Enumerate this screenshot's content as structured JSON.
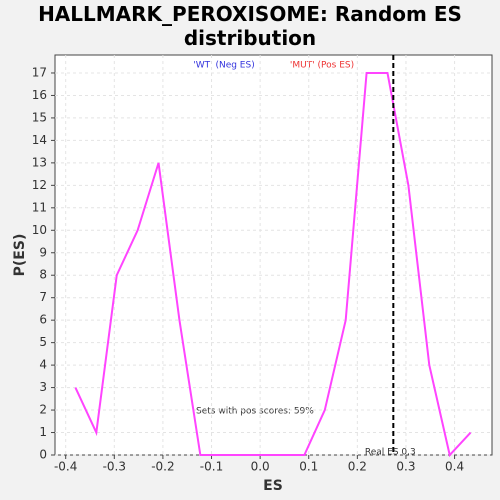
{
  "chart_data": {
    "type": "line",
    "title": "HALLMARK_PEROXISOME: Random ES distribution",
    "x_label": "ES",
    "y_label": "P(ES)",
    "legend_neg": "'WT' (Neg ES)",
    "legend_pos": "'MUT' (Pos ES)",
    "neg_color": "#3333dd",
    "pos_color": "#ee3333",
    "annotation": "Sets with pos scores: 59%",
    "real_es": {
      "value": 0.274,
      "label": "Real ES 0.3"
    },
    "color": "#ff44ff",
    "x": [
      -0.38,
      -0.337,
      -0.295,
      -0.252,
      -0.209,
      -0.166,
      -0.123,
      -0.081,
      -0.038,
      0.005,
      0.048,
      0.091,
      0.133,
      0.176,
      0.219,
      0.262,
      0.305,
      0.348,
      0.39,
      0.433
    ],
    "values": [
      3,
      1,
      8,
      10,
      13,
      6,
      0,
      0,
      0,
      0,
      0,
      0,
      2,
      6,
      17,
      17,
      12,
      4,
      0,
      1
    ],
    "xlim": [
      -0.422,
      0.477
    ],
    "ylim": [
      0,
      17.8
    ],
    "xticks": [
      -0.4,
      -0.3,
      -0.2,
      -0.1,
      {
        "value": 0,
        "label": "0.0"
      },
      0.1,
      0.2,
      0.3,
      0.4
    ],
    "yticks": [
      0,
      1,
      2,
      3,
      4,
      5,
      6,
      7,
      8,
      9,
      10,
      11,
      12,
      13,
      14,
      15,
      16,
      17
    ],
    "grid": true
  }
}
